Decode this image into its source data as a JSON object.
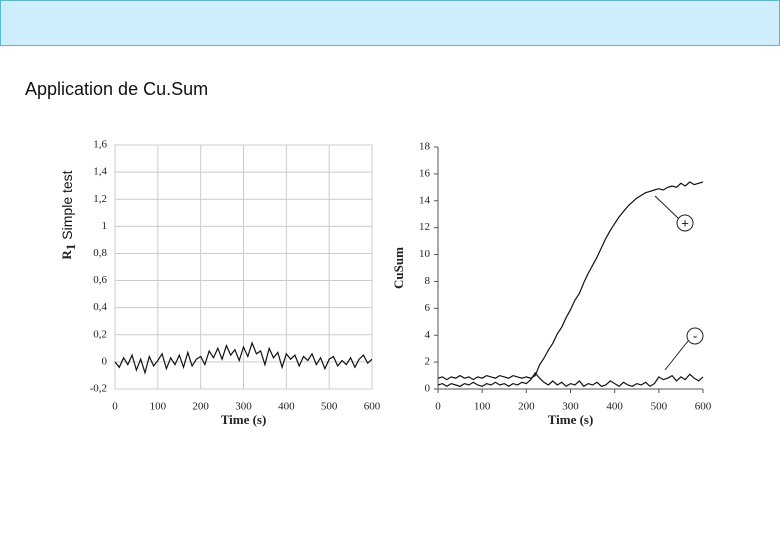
{
  "title": "Application de Cu.Sum",
  "chart_data": [
    {
      "type": "line",
      "y_label_main": "R",
      "y_label_subscript": "1",
      "y_label_note": "Simple test",
      "xlabel": "Time (s)",
      "xlim": [
        0,
        600
      ],
      "xticks": [
        0,
        100,
        200,
        300,
        400,
        500,
        600
      ],
      "ylim": [
        -0.2,
        1.6
      ],
      "yticks": [
        {
          "value": -0.2,
          "label": "-0,2"
        },
        0,
        {
          "value": 0.2,
          "label": "0,2"
        },
        {
          "value": 0.4,
          "label": "0,4"
        },
        {
          "value": 0.6,
          "label": "0,6"
        },
        {
          "value": 0.8,
          "label": "0,8"
        },
        1,
        {
          "value": 1.2,
          "label": "1,2"
        },
        {
          "value": 1.4,
          "label": "1,4"
        },
        {
          "value": 1.6,
          "label": "1,6"
        }
      ],
      "grid": true,
      "x": [
        0,
        10,
        20,
        30,
        40,
        50,
        60,
        70,
        80,
        90,
        100,
        110,
        120,
        130,
        140,
        150,
        160,
        170,
        180,
        190,
        200,
        210,
        220,
        230,
        240,
        250,
        260,
        270,
        280,
        290,
        300,
        310,
        320,
        330,
        340,
        350,
        360,
        370,
        380,
        390,
        400,
        410,
        420,
        430,
        440,
        450,
        460,
        470,
        480,
        490,
        500,
        510,
        520,
        530,
        540,
        550,
        560,
        570,
        580,
        590,
        600
      ],
      "series": [
        {
          "color": "#111",
          "values": [
            0.0,
            -0.04,
            0.03,
            -0.02,
            0.05,
            -0.06,
            0.02,
            -0.08,
            0.04,
            -0.03,
            0.01,
            0.06,
            -0.05,
            0.03,
            -0.02,
            0.05,
            -0.04,
            0.07,
            -0.03,
            0.02,
            0.04,
            -0.02,
            0.08,
            0.03,
            0.1,
            0.02,
            0.12,
            0.05,
            0.09,
            0.01,
            0.11,
            0.04,
            0.14,
            0.06,
            0.08,
            -0.02,
            0.1,
            0.03,
            0.07,
            -0.04,
            0.06,
            0.02,
            0.05,
            -0.03,
            0.04,
            0.01,
            0.06,
            -0.02,
            0.03,
            -0.05,
            0.02,
            0.04,
            -0.03,
            0.01,
            -0.02,
            0.03,
            -0.04,
            0.02,
            0.05,
            -0.01,
            0.02
          ]
        }
      ]
    },
    {
      "type": "line",
      "ylabel": "CuSum",
      "xlabel": "Time (s)",
      "xlim": [
        0,
        600
      ],
      "xticks": [
        0,
        100,
        200,
        300,
        400,
        500,
        600
      ],
      "ylim": [
        0,
        18
      ],
      "yticks": [
        0,
        2,
        4,
        6,
        8,
        10,
        12,
        14,
        16,
        18
      ],
      "grid": false,
      "x": [
        0,
        10,
        20,
        30,
        40,
        50,
        60,
        70,
        80,
        90,
        100,
        110,
        120,
        130,
        140,
        150,
        160,
        170,
        180,
        190,
        200,
        210,
        220,
        230,
        240,
        250,
        260,
        270,
        280,
        290,
        300,
        310,
        320,
        330,
        340,
        350,
        360,
        370,
        380,
        390,
        400,
        410,
        420,
        430,
        440,
        450,
        460,
        470,
        480,
        490,
        500,
        510,
        520,
        530,
        540,
        550,
        560,
        570,
        580,
        590,
        600
      ],
      "series": [
        {
          "color": "#111",
          "values": [
            0.8,
            0.9,
            0.7,
            0.9,
            0.8,
            1.0,
            0.8,
            0.9,
            0.7,
            0.9,
            0.8,
            1.0,
            0.9,
            0.8,
            1.0,
            0.9,
            0.8,
            1.0,
            0.9,
            0.8,
            0.9,
            0.8,
            1.0,
            1.8,
            2.3,
            2.9,
            3.4,
            4.1,
            4.6,
            5.3,
            5.9,
            6.6,
            7.1,
            7.9,
            8.6,
            9.2,
            9.8,
            10.5,
            11.2,
            11.8,
            12.3,
            12.8,
            13.2,
            13.6,
            13.9,
            14.2,
            14.4,
            14.6,
            14.7,
            14.8,
            14.9,
            14.8,
            15.0,
            15.1,
            15.0,
            15.3,
            15.1,
            15.4,
            15.2,
            15.3,
            15.4
          ]
        },
        {
          "color": "#111",
          "values": [
            0.3,
            0.4,
            0.2,
            0.4,
            0.3,
            0.2,
            0.4,
            0.3,
            0.5,
            0.3,
            0.2,
            0.4,
            0.3,
            0.5,
            0.3,
            0.4,
            0.2,
            0.4,
            0.3,
            0.5,
            0.4,
            0.7,
            1.2,
            0.8,
            0.5,
            0.3,
            0.6,
            0.3,
            0.5,
            0.2,
            0.4,
            0.3,
            0.6,
            0.2,
            0.4,
            0.3,
            0.5,
            0.2,
            0.3,
            0.6,
            0.4,
            0.2,
            0.5,
            0.3,
            0.2,
            0.4,
            0.3,
            0.5,
            0.2,
            0.4,
            0.9,
            0.7,
            0.8,
            1.0,
            0.6,
            0.9,
            0.7,
            1.1,
            0.8,
            0.6,
            0.9
          ]
        }
      ],
      "annotations": [
        "+",
        "-"
      ]
    }
  ]
}
